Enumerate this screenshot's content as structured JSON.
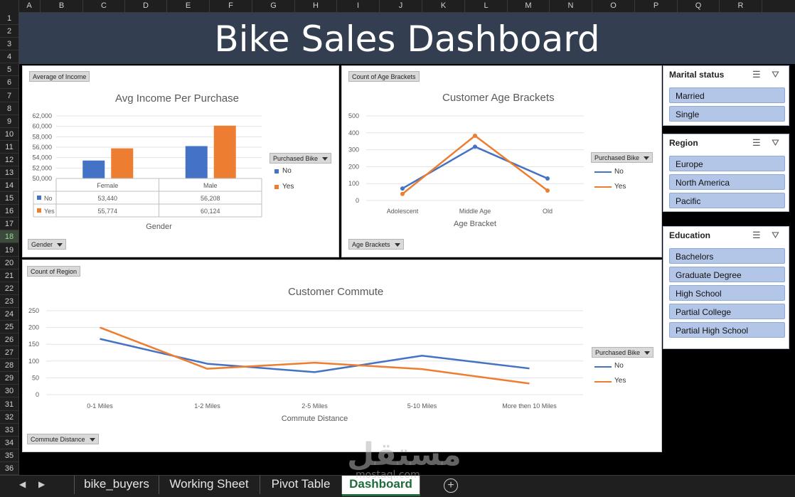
{
  "columns": [
    "A",
    "B",
    "C",
    "D",
    "E",
    "F",
    "G",
    "H",
    "I",
    "J",
    "K",
    "L",
    "M",
    "N",
    "O",
    "P",
    "Q",
    "R"
  ],
  "rows": [
    "1",
    "2",
    "3",
    "4",
    "5",
    "6",
    "7",
    "8",
    "9",
    "10",
    "11",
    "12",
    "13",
    "14",
    "15",
    "16",
    "17",
    "18",
    "19",
    "20",
    "21",
    "22",
    "23",
    "24",
    "25",
    "26",
    "27",
    "28",
    "29",
    "30",
    "31",
    "32",
    "33",
    "34",
    "35",
    "36"
  ],
  "selected_row": "18",
  "banner": {
    "title": "Bike Sales Dashboard"
  },
  "income_chart": {
    "field_button": "Average of Income",
    "title": "Avg Income Per Purchase",
    "axis_field_button": "Gender",
    "legend_field_button": "Purchased Bike",
    "legend": [
      "No",
      "Yes"
    ],
    "xlabel": "Gender",
    "yticks": [
      "62,000",
      "60,000",
      "58,000",
      "56,000",
      "54,000",
      "52,000",
      "50,000"
    ],
    "categories": [
      "Female",
      "Male"
    ],
    "table_rows": [
      {
        "label": "No",
        "values": [
          "53,440",
          "56,208"
        ]
      },
      {
        "label": "Yes",
        "values": [
          "55,774",
          "60,124"
        ]
      }
    ]
  },
  "age_chart": {
    "field_button": "Count of Age Brackets",
    "title": "Customer Age Brackets",
    "axis_field_button": "Age Brackets",
    "legend_field_button": "Purchased Bike",
    "legend": [
      "No",
      "Yes"
    ],
    "xlabel": "Age Bracket",
    "yticks": [
      "500",
      "400",
      "300",
      "200",
      "100",
      "0"
    ],
    "categories": [
      "Adolescent",
      "Middle Age",
      "Old"
    ]
  },
  "commute_chart": {
    "field_button": "Count of Region",
    "title": "Customer Commute",
    "axis_field_button": "Commute Distance",
    "legend_field_button": "Purchased Bike",
    "legend": [
      "No",
      "Yes"
    ],
    "xlabel": "Commute Distance",
    "yticks": [
      "250",
      "200",
      "150",
      "100",
      "50",
      "0"
    ],
    "categories": [
      "0-1 Miles",
      "1-2 Miles",
      "2-5 Miles",
      "5-10 Miles",
      "More then 10 Miles"
    ]
  },
  "chart_data": [
    {
      "type": "bar",
      "title": "Avg Income Per Purchase",
      "xlabel": "Gender",
      "ylabel": "",
      "categories": [
        "Female",
        "Male"
      ],
      "ylim": [
        50000,
        62000
      ],
      "series": [
        {
          "name": "No",
          "values": [
            53440,
            56208
          ],
          "color": "#4472c4"
        },
        {
          "name": "Yes",
          "values": [
            55774,
            60124
          ],
          "color": "#ed7d31"
        }
      ],
      "grid": true,
      "legend": "right"
    },
    {
      "type": "line",
      "title": "Customer Age Brackets",
      "xlabel": "Age Bracket",
      "ylabel": "",
      "categories": [
        "Adolescent",
        "Middle Age",
        "Old"
      ],
      "ylim": [
        0,
        500
      ],
      "series": [
        {
          "name": "No",
          "values": [
            71,
            318,
            130
          ],
          "color": "#4472c4"
        },
        {
          "name": "Yes",
          "values": [
            39,
            383,
            59
          ],
          "color": "#ed7d31"
        }
      ],
      "grid": true,
      "legend": "right"
    },
    {
      "type": "line",
      "title": "Customer Commute",
      "xlabel": "Commute Distance",
      "ylabel": "",
      "categories": [
        "0-1 Miles",
        "1-2 Miles",
        "2-5 Miles",
        "5-10 Miles",
        "More then 10 Miles"
      ],
      "ylim": [
        0,
        250
      ],
      "series": [
        {
          "name": "No",
          "values": [
            166,
            92,
            67,
            116,
            78
          ],
          "color": "#4472c4"
        },
        {
          "name": "Yes",
          "values": [
            200,
            77,
            95,
            76,
            33
          ],
          "color": "#ed7d31"
        }
      ],
      "grid": true,
      "legend": "right"
    }
  ],
  "slicers": {
    "marital": {
      "title": "Marital status",
      "items": [
        "Married",
        "Single"
      ]
    },
    "region": {
      "title": "Region",
      "items": [
        "Europe",
        "North America",
        "Pacific"
      ]
    },
    "education": {
      "title": "Education",
      "items": [
        "Bachelors",
        "Graduate Degree",
        "High School",
        "Partial College",
        "Partial High School"
      ]
    }
  },
  "tabs": [
    "bike_buyers",
    "Working Sheet",
    "Pivot Table",
    "Dashboard"
  ],
  "active_tab": "Dashboard",
  "watermark": {
    "text": "مستقل",
    "sub": "mostaql.com"
  },
  "colors": {
    "no": "#4472c4",
    "yes": "#ed7d31",
    "banner": "#333f50",
    "slicer_item": "#b4c6e7"
  }
}
